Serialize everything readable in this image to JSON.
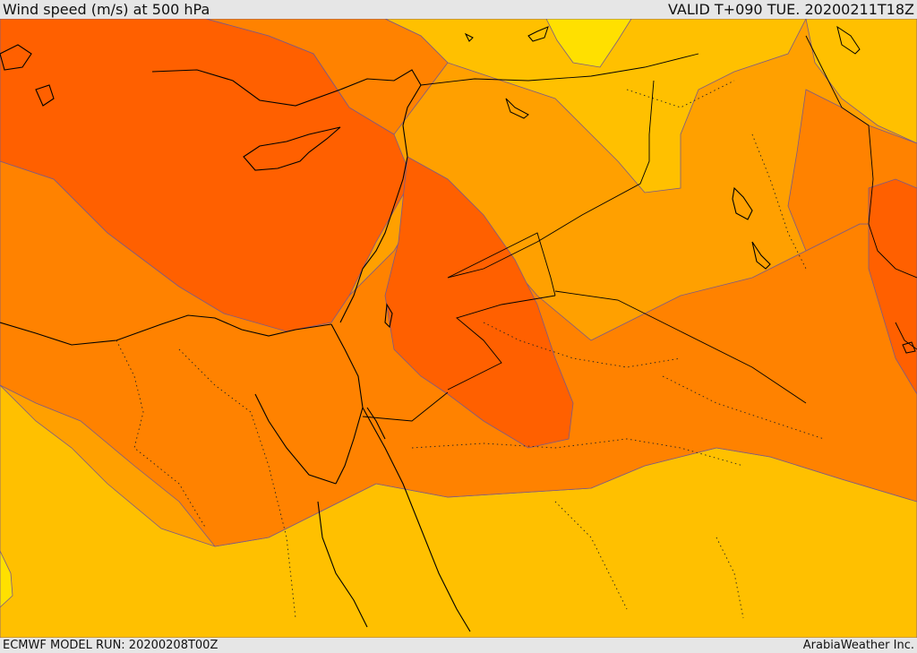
{
  "header": {
    "title": "Wind speed (m/s) at 500 hPa",
    "valid": "VALID T+090 TUE. 20200211T18Z"
  },
  "footer": {
    "model_run": "ECMWF MODEL RUN: 20200208T00Z",
    "credit": "ArabiaWeather Inc."
  },
  "palette": {
    "band_yellow": "#ffe000",
    "band_gold": "#ffc000",
    "band_light_orange": "#ffa000",
    "band_orange": "#ff8200",
    "band_dark_orange": "#ff6000",
    "contour_line": "#7a5a88",
    "coast_line": "#000000"
  }
}
